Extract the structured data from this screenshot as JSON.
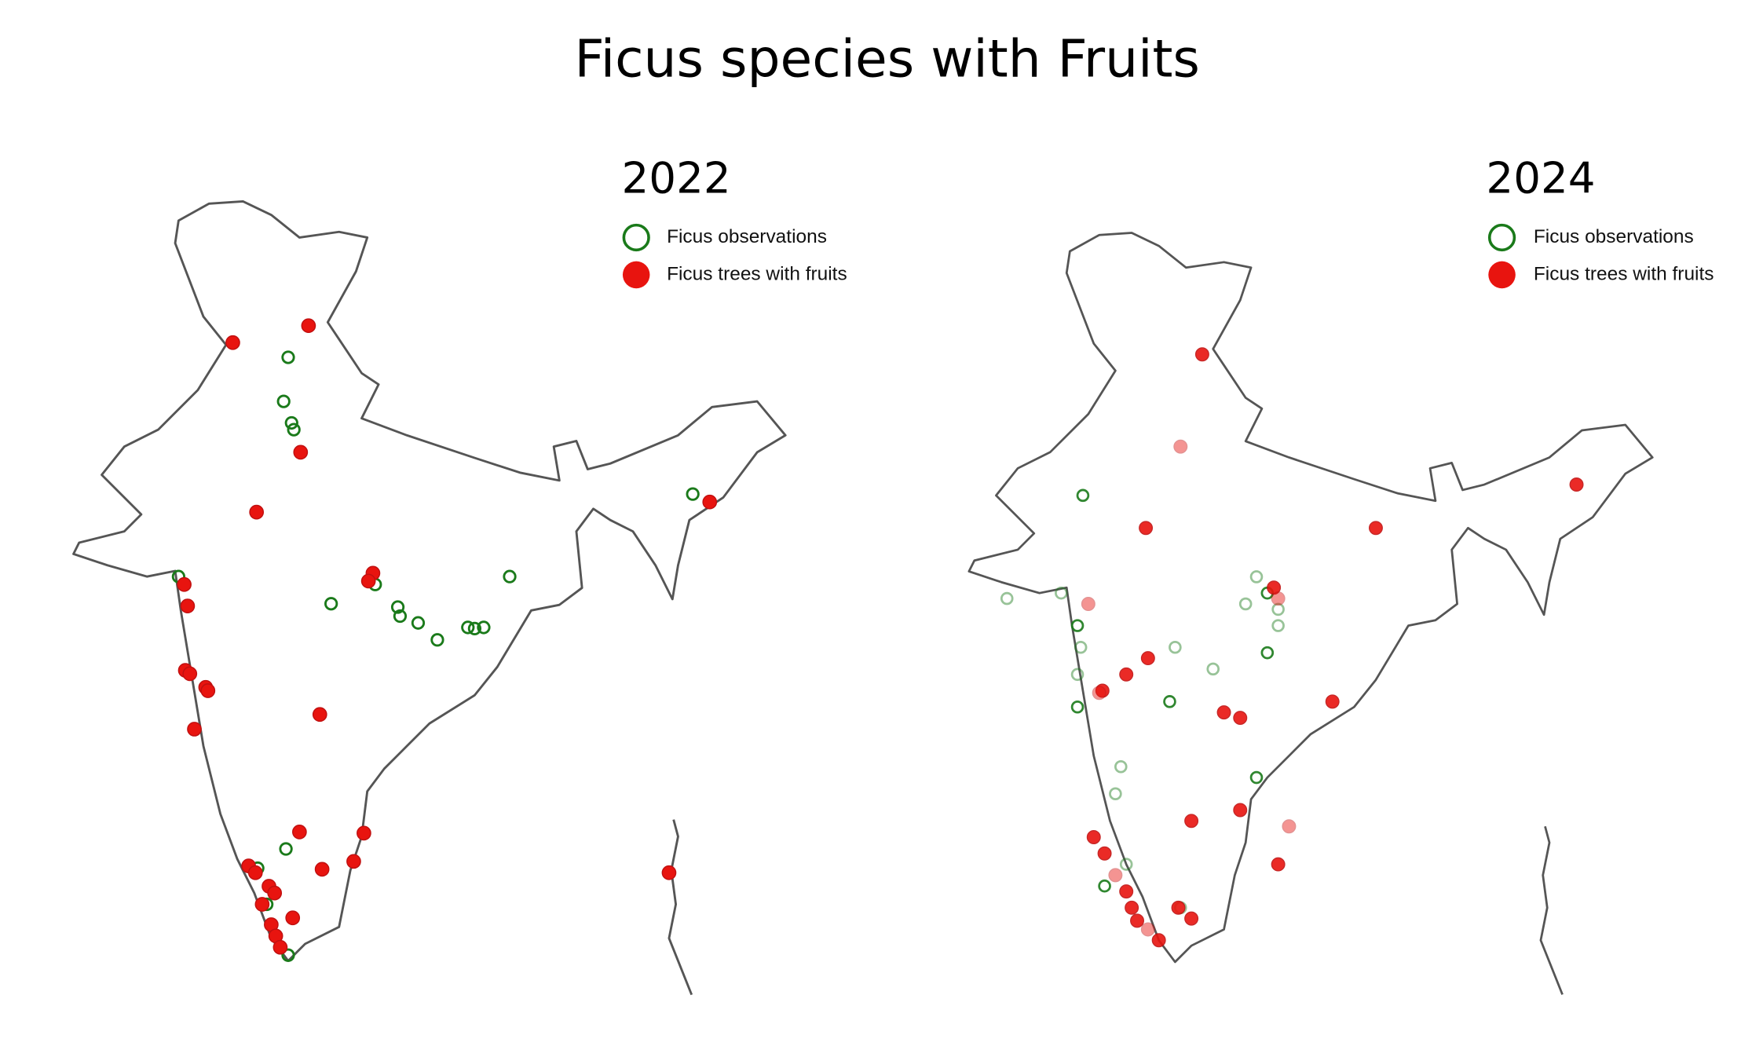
{
  "title": "Ficus species with Fruits",
  "panels": [
    {
      "year": "2022",
      "legend": [
        "Ficus observations",
        "Ficus trees with fruits"
      ]
    },
    {
      "year": "2024",
      "legend": [
        "Ficus observations",
        "Ficus trees with fruits"
      ]
    }
  ]
}
